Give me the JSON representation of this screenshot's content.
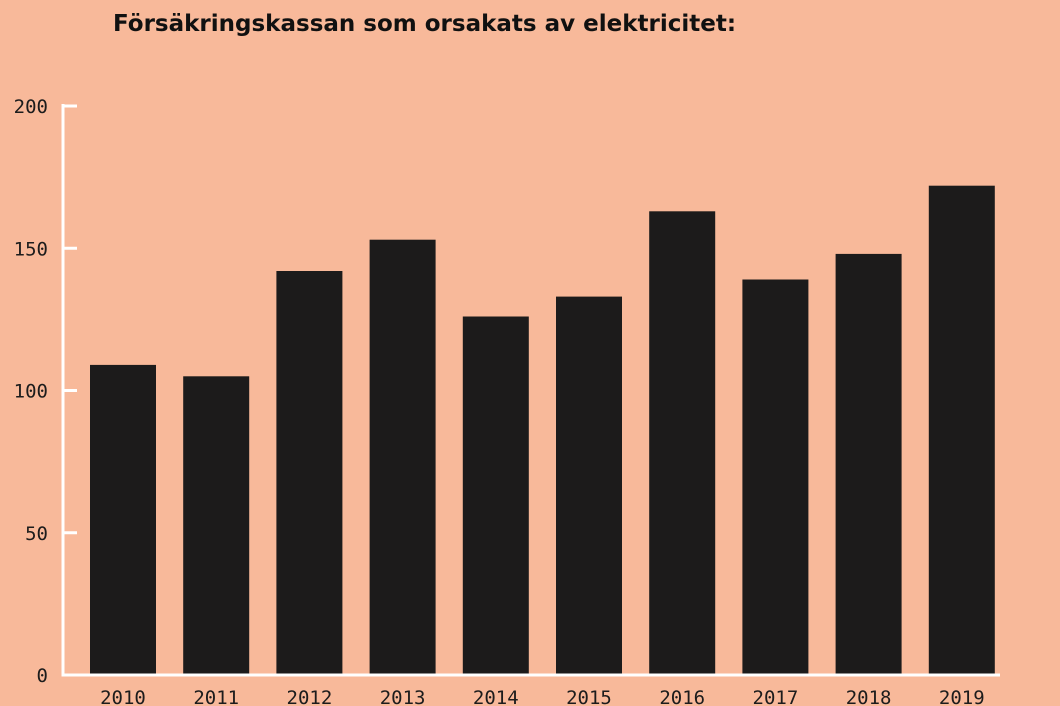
{
  "chart_data": {
    "type": "bar",
    "title": "Försäkringskassan som orsakats av elektricitet:",
    "xlabel": "",
    "ylabel": "",
    "categories": [
      "2010",
      "2011",
      "2012",
      "2013",
      "2014",
      "2015",
      "2016",
      "2017",
      "2018",
      "2019"
    ],
    "values": [
      109,
      105,
      142,
      153,
      126,
      133,
      163,
      139,
      148,
      172
    ],
    "ylim": [
      0,
      200
    ],
    "yticks": [
      0,
      50,
      100,
      150,
      200
    ],
    "grid": false,
    "legend": "none",
    "bar_color": "#1c1b1b",
    "axis_color": "#ffffff",
    "background_color": "#f8b99a"
  }
}
